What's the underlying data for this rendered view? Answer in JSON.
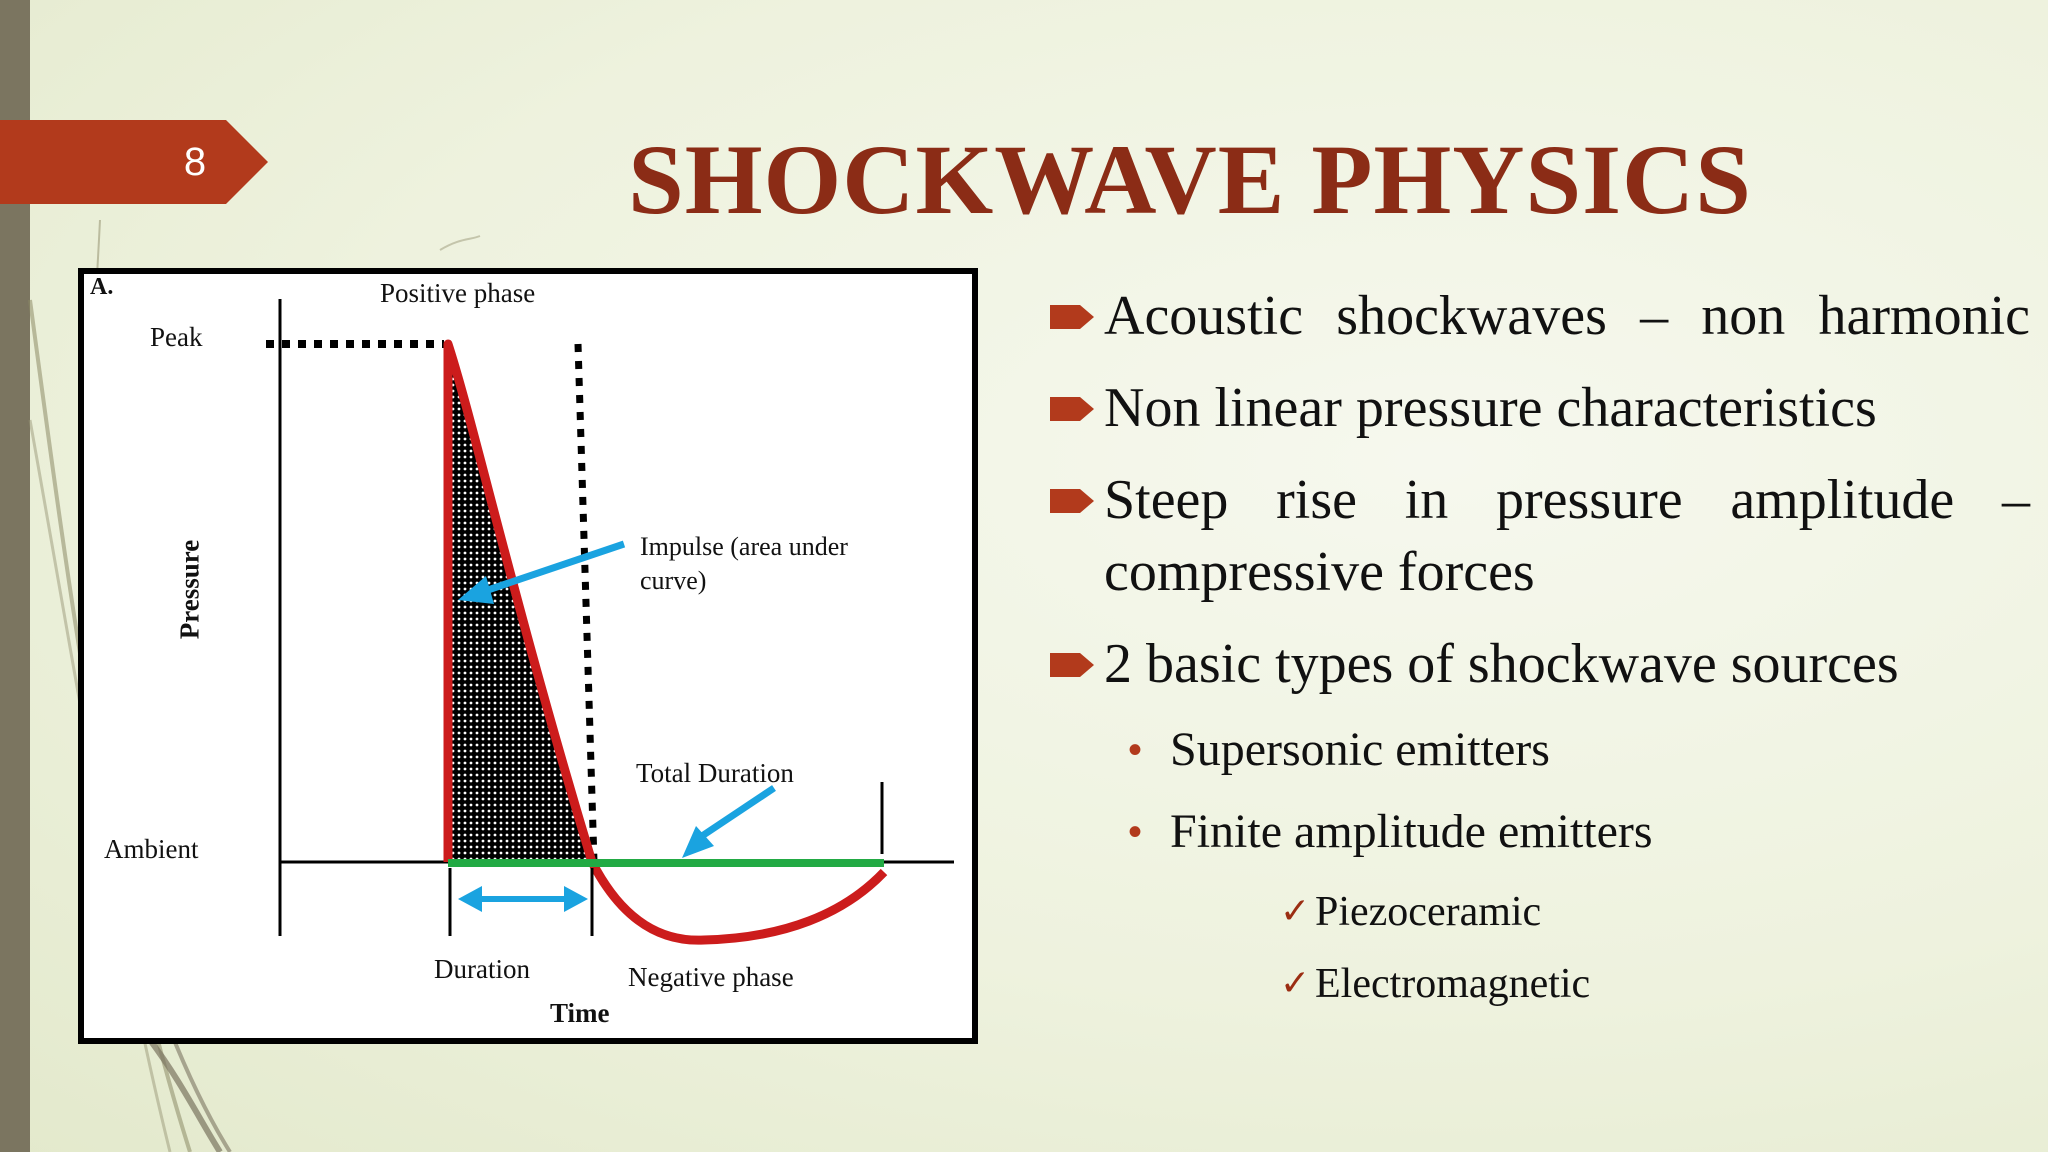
{
  "slide": {
    "number": "8",
    "title": "SHOCKWAVE PHYSICS",
    "accent_color": "#b23a1c",
    "title_color": "#8b2c16"
  },
  "figure": {
    "panel_label": "A.",
    "positive_phase": "Positive phase",
    "peak": "Peak",
    "pressure": "Pressure",
    "impulse": "Impulse (area under\ncurve)",
    "total_duration": "Total Duration",
    "ambient": "Ambient",
    "duration": "Duration",
    "negative_phase": "Negative phase",
    "time": "Time"
  },
  "bullets": [
    {
      "text": "Acoustic shockwaves – non harmonic",
      "icon": "arrow-bullet-icon"
    },
    {
      "text": "Non linear pressure characteristics",
      "icon": "arrow-bullet-icon"
    },
    {
      "text": "Steep rise in pressure amplitude – compressive forces",
      "icon": "arrow-bullet-icon"
    },
    {
      "text": "2 basic types of shockwave sources",
      "icon": "arrow-bullet-icon",
      "children": [
        {
          "text": "Supersonic emitters",
          "icon": "dot-bullet-icon"
        },
        {
          "text": "Finite amplitude emitters",
          "icon": "dot-bullet-icon",
          "children": [
            {
              "text": "Piezoceramic",
              "icon": "checkmark-icon"
            },
            {
              "text": "Electromagnetic",
              "icon": "checkmark-icon"
            }
          ]
        }
      ]
    }
  ]
}
